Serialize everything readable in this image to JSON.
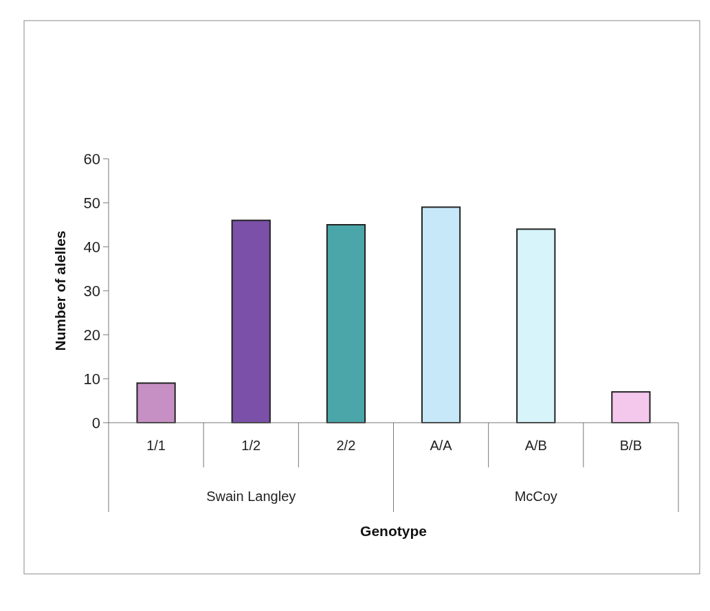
{
  "chart_data": {
    "type": "bar",
    "xlabel": "Genotype",
    "ylabel": "Number of alelles",
    "categories": [
      "1/1",
      "1/2",
      "2/2",
      "A/A",
      "A/B",
      "B/B"
    ],
    "values": [
      9,
      46,
      45,
      49,
      44,
      7
    ],
    "colors": [
      "#c690c4",
      "#7a50a8",
      "#4aa6a8",
      "#c6e8f8",
      "#d6f4fa",
      "#f4c8ec"
    ],
    "ylim": [
      0,
      60
    ],
    "yticks": [
      0,
      10,
      20,
      30,
      40,
      50,
      60
    ],
    "grid": false,
    "annotations": [
      "Swain Langley",
      "McCoy"
    ]
  }
}
